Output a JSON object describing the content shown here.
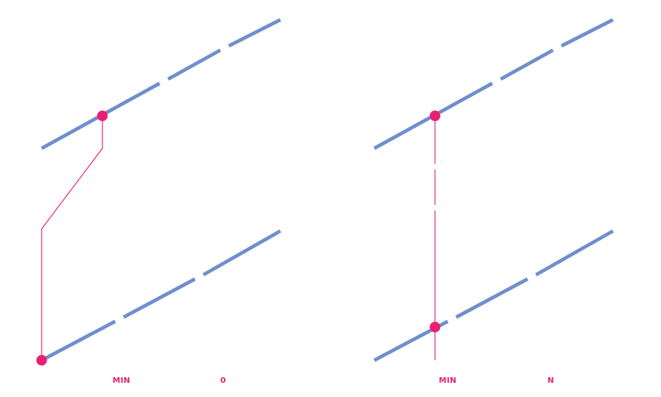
{
  "colors": {
    "line": "#6f8fcc",
    "accent": "#ea1f73",
    "background": "#ffffff"
  },
  "left_panel": {
    "label_a": "MIN",
    "label_b": "0"
  },
  "right_panel": {
    "label_a": "MIN",
    "label_b": "N"
  }
}
